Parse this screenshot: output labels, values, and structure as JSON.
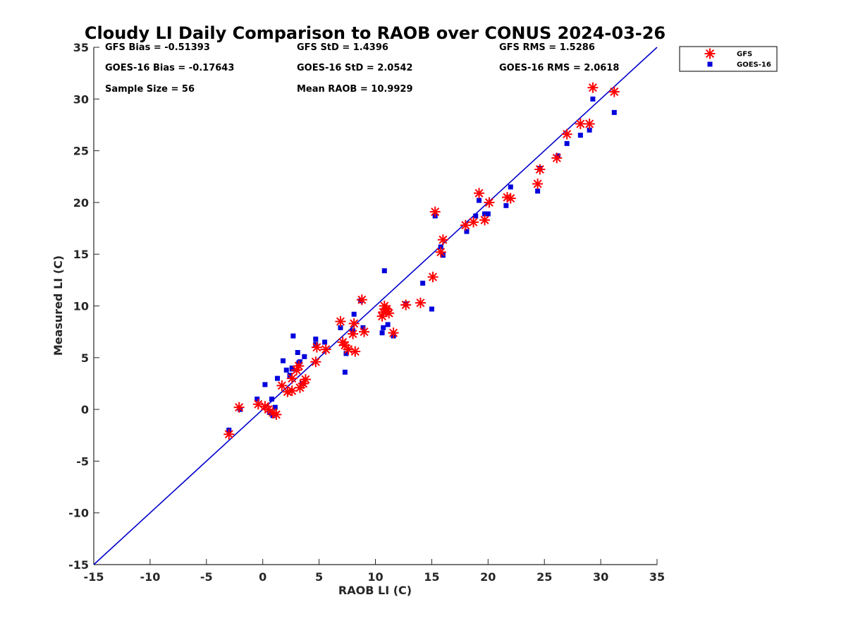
{
  "chart_data": {
    "type": "scatter",
    "title": "Cloudy LI Daily Comparison to RAOB over CONUS 2024-03-26",
    "xlabel": "RAOB LI (C)",
    "ylabel": "Measured LI (C)",
    "xlim": [
      -15,
      35
    ],
    "ylim": [
      -15,
      35
    ],
    "xticks": [
      -15,
      -10,
      -5,
      0,
      5,
      10,
      15,
      20,
      25,
      30,
      35
    ],
    "yticks": [
      -15,
      -10,
      -5,
      0,
      5,
      10,
      15,
      20,
      25,
      30,
      35
    ],
    "grid": false,
    "legend_position": "outside-top-right",
    "reference_line": {
      "type": "one-to-one",
      "color": "#0000cc"
    },
    "stats": [
      [
        "GFS Bias = -0.51393",
        "GFS StD = 1.4396",
        "GFS RMS = 1.5286"
      ],
      [
        "GOES-16 Bias = -0.17643",
        "GOES-16 StD = 2.0542",
        "GOES-16 RMS = 2.0618"
      ],
      [
        "Sample Size = 56",
        "Mean RAOB = 10.9929",
        ""
      ]
    ],
    "series": [
      {
        "name": "GFS",
        "marker": "asterisk",
        "color": "#ff0000",
        "x": [
          -3.0,
          -2.1,
          -0.4,
          0.5,
          0.9,
          1.2,
          1.7,
          2.2,
          2.6,
          3.0,
          3.3,
          3.6,
          3.8,
          4.7,
          4.8,
          5.6,
          6.9,
          7.1,
          7.3,
          7.6,
          8.0,
          8.1,
          8.2,
          8.8,
          9.0,
          10.6,
          10.8,
          11.0,
          11.2,
          11.6,
          12.7,
          14.0,
          15.1,
          15.3,
          15.8,
          16.0,
          18.0,
          18.7,
          19.2,
          19.7,
          20.1,
          21.7,
          22.0,
          24.4,
          24.6,
          26.1,
          27.0,
          28.2,
          29.0,
          29.3,
          31.2,
          0.2,
          2.6,
          3.2,
          10.7,
          11.0
        ],
        "y": [
          -2.4,
          0.2,
          0.5,
          0.0,
          -0.3,
          -0.5,
          2.3,
          1.7,
          1.8,
          3.8,
          2.1,
          2.5,
          2.9,
          4.6,
          6.0,
          5.8,
          8.5,
          6.5,
          6.2,
          5.8,
          7.3,
          8.3,
          5.6,
          10.6,
          7.5,
          9.0,
          10.0,
          9.5,
          9.3,
          7.4,
          10.1,
          10.3,
          12.8,
          19.1,
          15.2,
          16.4,
          17.8,
          18.1,
          20.9,
          18.3,
          20.0,
          20.5,
          20.4,
          21.8,
          23.2,
          24.3,
          26.6,
          27.6,
          27.6,
          31.1,
          30.7,
          0.3,
          3.0,
          4.2,
          9.4,
          9.7
        ]
      },
      {
        "name": "GOES-16",
        "marker": "square",
        "color": "#0000dd",
        "x": [
          -3.0,
          -2.0,
          -0.5,
          0.2,
          0.6,
          0.9,
          1.1,
          1.3,
          1.8,
          2.1,
          2.4,
          2.6,
          2.7,
          3.1,
          3.2,
          3.5,
          3.7,
          4.7,
          5.5,
          6.9,
          7.3,
          7.4,
          8.0,
          8.1,
          8.7,
          8.9,
          10.6,
          10.7,
          10.8,
          11.1,
          11.6,
          12.7,
          14.2,
          15.0,
          15.3,
          15.8,
          16.0,
          18.1,
          18.9,
          19.2,
          19.7,
          20.0,
          21.6,
          22.0,
          24.4,
          24.6,
          26.2,
          27.0,
          28.2,
          29.0,
          29.3,
          31.2,
          2.6,
          0.8,
          4.7,
          3.3
        ],
        "y": [
          -2.0,
          0.0,
          1.0,
          2.4,
          -0.3,
          -0.6,
          0.2,
          3.0,
          4.7,
          3.8,
          3.3,
          3.9,
          7.1,
          5.5,
          4.5,
          2.5,
          5.1,
          6.8,
          6.5,
          7.9,
          3.6,
          5.4,
          7.6,
          9.2,
          10.5,
          7.9,
          7.4,
          7.9,
          13.4,
          8.2,
          7.1,
          10.2,
          12.2,
          9.7,
          18.7,
          15.7,
          14.9,
          17.2,
          18.7,
          20.2,
          18.9,
          18.9,
          19.7,
          21.5,
          21.1,
          23.3,
          24.5,
          25.7,
          26.5,
          27.0,
          30.0,
          28.7,
          4.0,
          1.0,
          6.3,
          4.6
        ]
      }
    ]
  }
}
